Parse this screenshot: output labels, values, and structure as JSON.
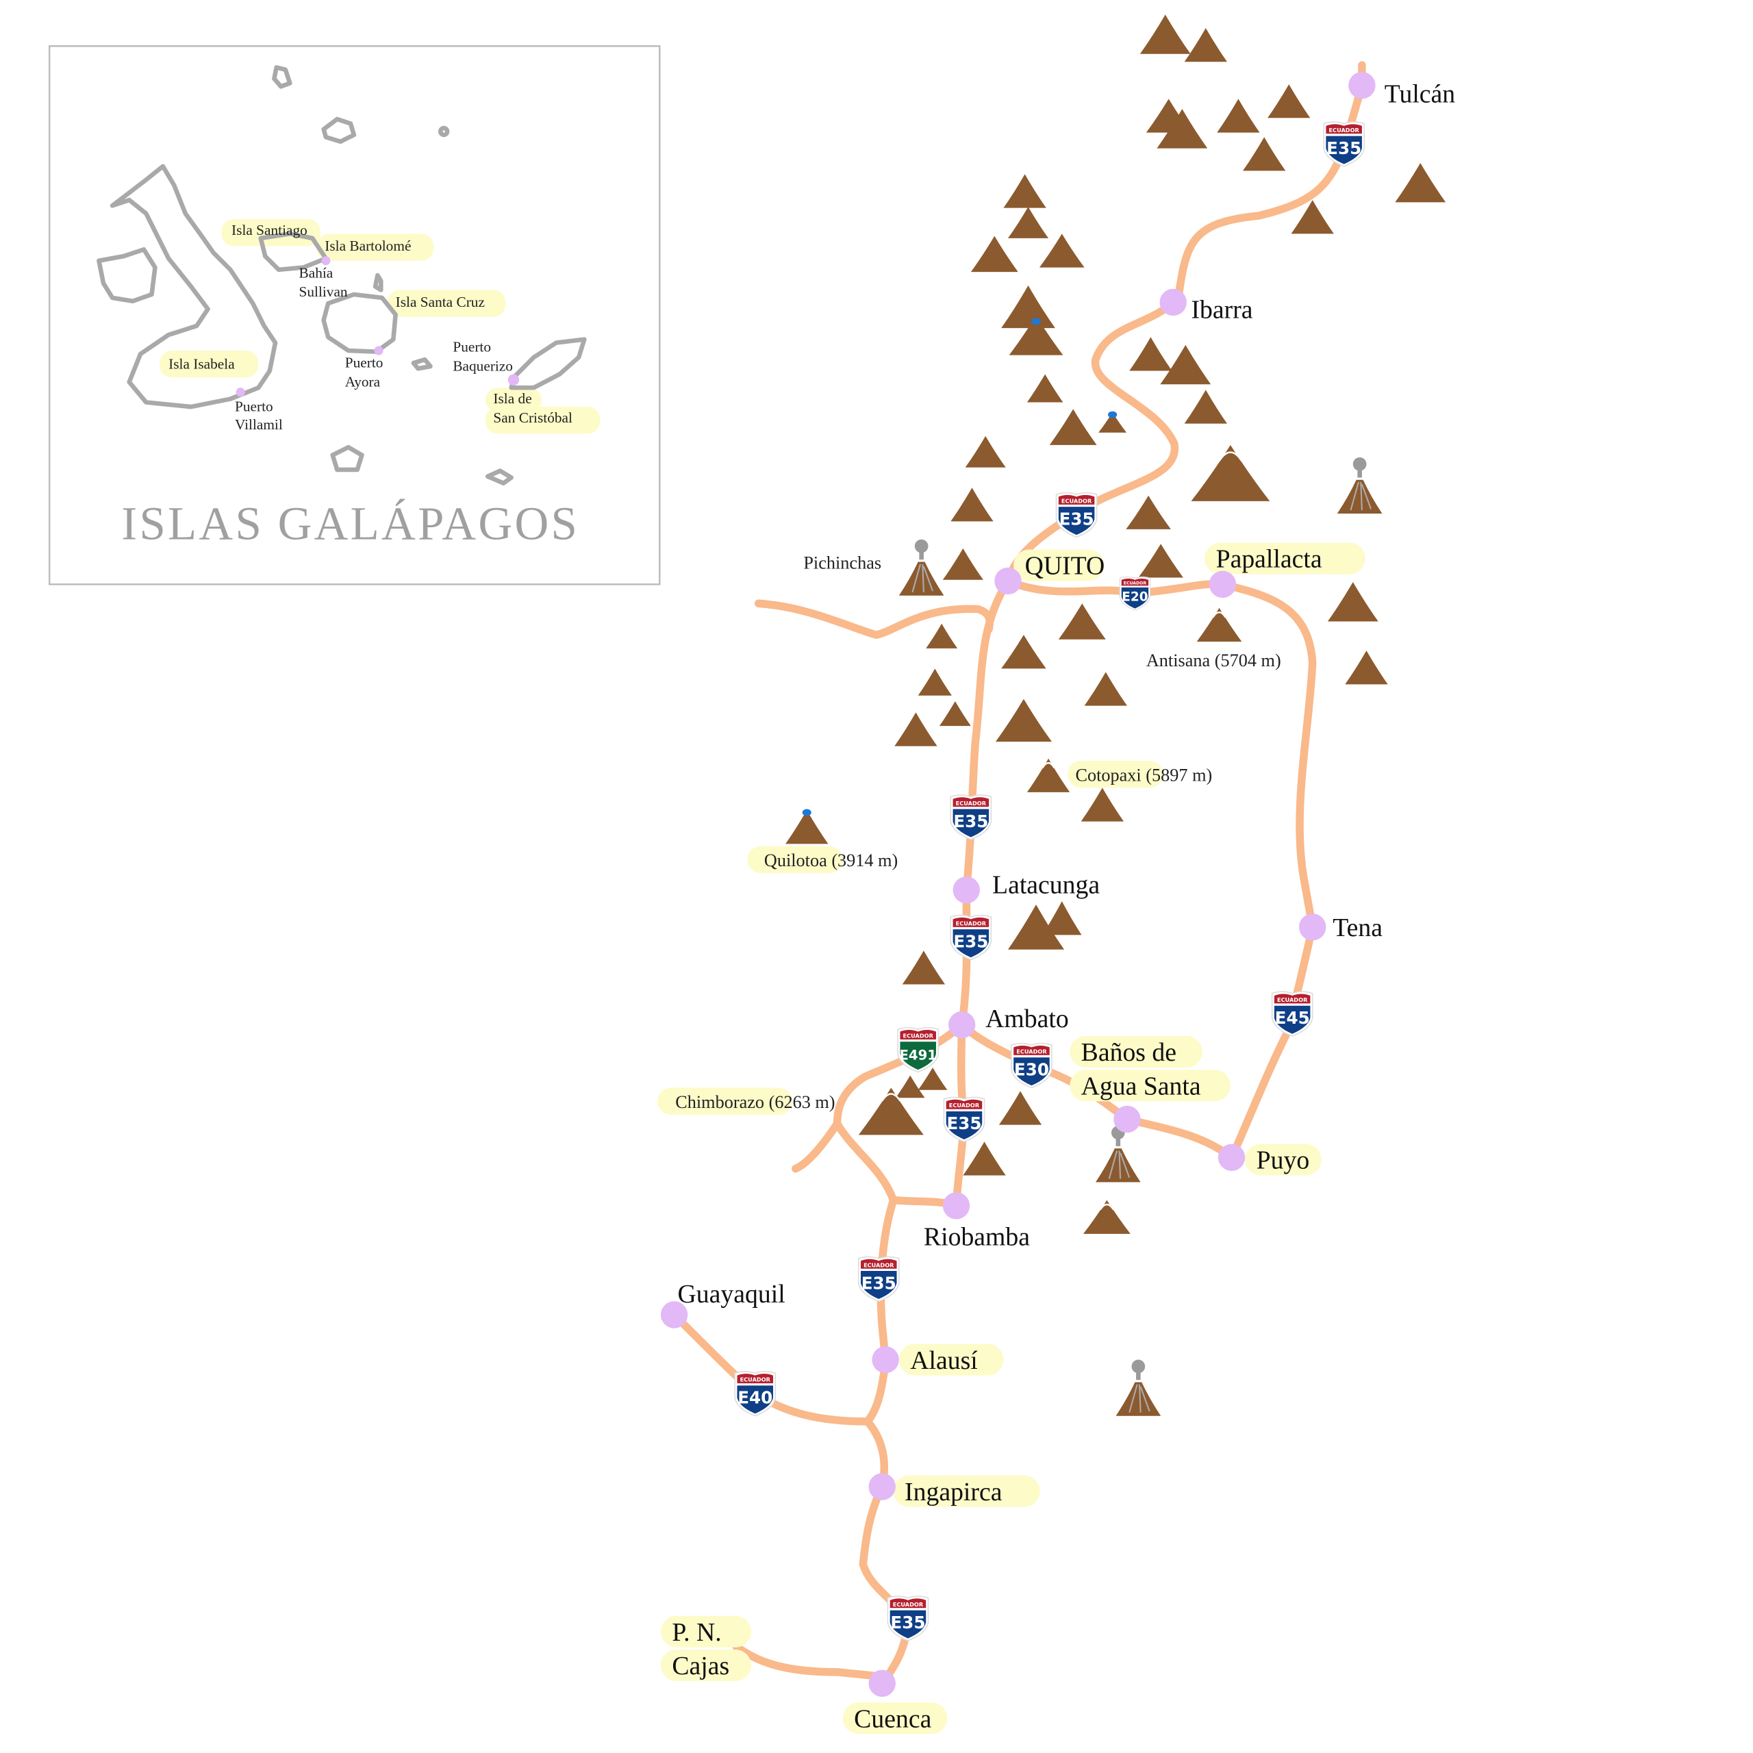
{
  "colors": {
    "road": "#f9b98a",
    "city": "#e2b8f6",
    "mountain": "#8b5a2e",
    "highlight": "#fdfbc8",
    "island": "#a9a9a9",
    "shield_blue": "#0f3f86",
    "shield_red": "#b5202e",
    "shield_green": "#0d6a3c",
    "lake": "#1e78d8",
    "smoke": "#9a9a9a"
  },
  "inset": {
    "title": "ISLAS GALÁPAGOS",
    "islands": [
      "Isla Santiago",
      "Isla Bartolomé",
      "Isla Santa Cruz",
      "Isla Isabela",
      "Isla de",
      "San Cristóbal"
    ],
    "towns": [
      "Bahía",
      "Sullivan",
      "Puerto",
      "Ayora",
      "Puerto",
      "Baquerizo",
      "Puerto",
      "Villamil"
    ]
  },
  "cities": [
    {
      "name": "Tulcán",
      "highlight": false
    },
    {
      "name": "Ibarra",
      "highlight": false
    },
    {
      "name": "QUITO",
      "highlight": true
    },
    {
      "name": "Papallacta",
      "highlight": true
    },
    {
      "name": "Latacunga",
      "highlight": false
    },
    {
      "name": "Tena",
      "highlight": false
    },
    {
      "name": "Ambato",
      "highlight": false
    },
    {
      "name": "Baños de",
      "highlight": true
    },
    {
      "name": "Agua Santa",
      "highlight": true
    },
    {
      "name": "Puyo",
      "highlight": true
    },
    {
      "name": "Riobamba",
      "highlight": false
    },
    {
      "name": "Guayaquil",
      "highlight": false
    },
    {
      "name": "Alausí",
      "highlight": true
    },
    {
      "name": "Ingapirca",
      "highlight": true
    },
    {
      "name": "P. N.",
      "highlight": true
    },
    {
      "name": "Cajas",
      "highlight": true
    },
    {
      "name": "Cuenca",
      "highlight": true
    }
  ],
  "peaks": [
    {
      "label": "Pichinchas",
      "type": "volcano"
    },
    {
      "label": "Antisana (5704 m)",
      "type": "snowcap"
    },
    {
      "label": "Cotopaxi (5897 m)",
      "type": "snowcap"
    },
    {
      "label": "Quilotoa (3914 m)",
      "type": "crater-lake"
    },
    {
      "label": "Chimborazo (6263 m)",
      "type": "snowcap"
    }
  ],
  "shields": [
    {
      "country": "ECUADOR",
      "route": "E35",
      "color": "blue"
    },
    {
      "country": "ECUADOR",
      "route": "E35",
      "color": "blue"
    },
    {
      "country": "ECUADOR",
      "route": "E20",
      "color": "blue"
    },
    {
      "country": "ECUADOR",
      "route": "E35",
      "color": "blue"
    },
    {
      "country": "ECUADOR",
      "route": "E35",
      "color": "blue"
    },
    {
      "country": "ECUADOR",
      "route": "E45",
      "color": "blue"
    },
    {
      "country": "ECUADOR",
      "route": "E491",
      "color": "green"
    },
    {
      "country": "ECUADOR",
      "route": "E30",
      "color": "blue"
    },
    {
      "country": "ECUADOR",
      "route": "E35",
      "color": "blue"
    },
    {
      "country": "ECUADOR",
      "route": "E35",
      "color": "blue"
    },
    {
      "country": "ECUADOR",
      "route": "E40",
      "color": "blue"
    },
    {
      "country": "ECUADOR",
      "route": "E35",
      "color": "blue"
    }
  ]
}
